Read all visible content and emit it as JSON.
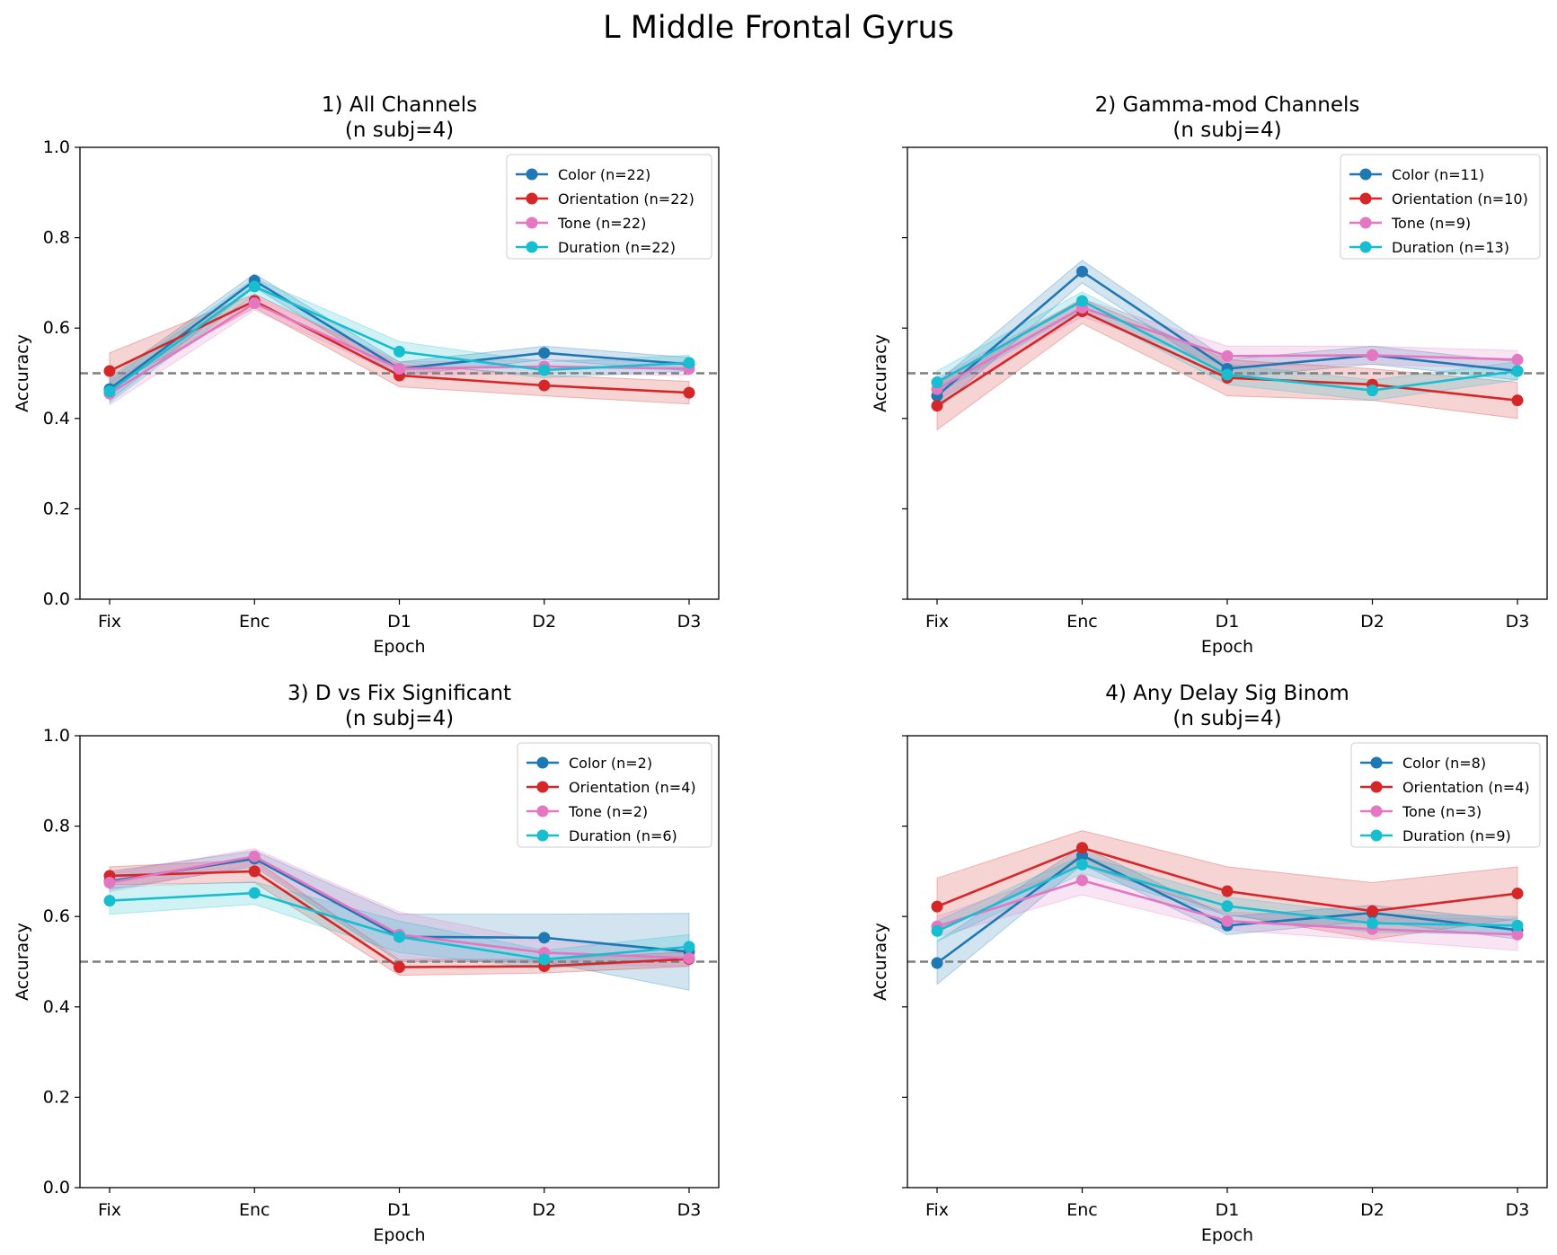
{
  "figure": {
    "title": "L Middle Frontal Gyrus"
  },
  "colors": {
    "Color": "#1f77b4",
    "Orientation": "#d62728",
    "Tone": "#e377c2",
    "Duration": "#17becf",
    "chance_line": "#7f7f7f"
  },
  "chart_data": [
    {
      "type": "line",
      "title": "1) All Channels",
      "subtitle": "(n subj=4)",
      "xlabel": "Epoch",
      "ylabel": "Accuracy",
      "categories": [
        "Fix",
        "Enc",
        "D1",
        "D2",
        "D3"
      ],
      "ylim": [
        0,
        1
      ],
      "yticks": [
        "0.0",
        "0.2",
        "0.4",
        "0.6",
        "0.8",
        "1.0"
      ],
      "show_ytick_labels": true,
      "chance_level": 0.5,
      "legend": "top-right",
      "series": [
        {
          "name": "Color (n=22)",
          "key": "Color",
          "values": [
            0.465,
            0.705,
            0.51,
            0.545,
            0.52
          ],
          "lower": [
            0.44,
            0.69,
            0.495,
            0.53,
            0.505
          ],
          "upper": [
            0.49,
            0.72,
            0.525,
            0.56,
            0.535
          ]
        },
        {
          "name": "Orientation (n=22)",
          "key": "Orientation",
          "values": [
            0.505,
            0.66,
            0.495,
            0.473,
            0.457
          ],
          "lower": [
            0.47,
            0.645,
            0.47,
            0.45,
            0.432
          ],
          "upper": [
            0.545,
            0.675,
            0.52,
            0.496,
            0.482
          ]
        },
        {
          "name": "Tone (n=22)",
          "key": "Tone",
          "values": [
            0.455,
            0.655,
            0.51,
            0.515,
            0.51
          ],
          "lower": [
            0.43,
            0.64,
            0.495,
            0.5,
            0.495
          ],
          "upper": [
            0.48,
            0.67,
            0.525,
            0.53,
            0.525
          ]
        },
        {
          "name": "Duration (n=22)",
          "key": "Duration",
          "values": [
            0.46,
            0.692,
            0.548,
            0.507,
            0.523
          ],
          "lower": [
            0.435,
            0.675,
            0.525,
            0.49,
            0.505
          ],
          "upper": [
            0.485,
            0.71,
            0.57,
            0.525,
            0.54
          ]
        }
      ]
    },
    {
      "type": "line",
      "title": "2) Gamma-mod Channels",
      "subtitle": "(n subj=4)",
      "xlabel": "Epoch",
      "ylabel": "Accuracy",
      "categories": [
        "Fix",
        "Enc",
        "D1",
        "D2",
        "D3"
      ],
      "ylim": [
        0,
        1
      ],
      "yticks": [
        "0.0",
        "0.2",
        "0.4",
        "0.6",
        "0.8",
        "1.0"
      ],
      "show_ytick_labels": false,
      "chance_level": 0.5,
      "legend": "top-right",
      "series": [
        {
          "name": "Color (n=11)",
          "key": "Color",
          "values": [
            0.45,
            0.725,
            0.51,
            0.54,
            0.505
          ],
          "lower": [
            0.42,
            0.7,
            0.49,
            0.52,
            0.485
          ],
          "upper": [
            0.48,
            0.75,
            0.53,
            0.56,
            0.525
          ]
        },
        {
          "name": "Orientation (n=10)",
          "key": "Orientation",
          "values": [
            0.428,
            0.637,
            0.49,
            0.475,
            0.44
          ],
          "lower": [
            0.375,
            0.61,
            0.45,
            0.44,
            0.4
          ],
          "upper": [
            0.48,
            0.665,
            0.53,
            0.51,
            0.48
          ]
        },
        {
          "name": "Tone (n=9)",
          "key": "Tone",
          "values": [
            0.465,
            0.645,
            0.538,
            0.54,
            0.53
          ],
          "lower": [
            0.44,
            0.625,
            0.515,
            0.52,
            0.51
          ],
          "upper": [
            0.49,
            0.665,
            0.56,
            0.56,
            0.55
          ]
        },
        {
          "name": "Duration (n=13)",
          "key": "Duration",
          "values": [
            0.48,
            0.66,
            0.497,
            0.462,
            0.505
          ],
          "lower": [
            0.455,
            0.64,
            0.475,
            0.44,
            0.485
          ],
          "upper": [
            0.505,
            0.68,
            0.52,
            0.485,
            0.525
          ]
        }
      ]
    },
    {
      "type": "line",
      "title": "3) D vs Fix Significant",
      "subtitle": "(n subj=4)",
      "xlabel": "Epoch",
      "ylabel": "Accuracy",
      "categories": [
        "Fix",
        "Enc",
        "D1",
        "D2",
        "D3"
      ],
      "ylim": [
        0,
        1
      ],
      "yticks": [
        "0.0",
        "0.2",
        "0.4",
        "0.6",
        "0.8",
        "1.0"
      ],
      "show_ytick_labels": true,
      "chance_level": 0.5,
      "legend": "top-right",
      "series": [
        {
          "name": "Color (n=2)",
          "key": "Color",
          "values": [
            0.678,
            0.728,
            0.555,
            0.553,
            0.522
          ],
          "lower": [
            0.66,
            0.71,
            0.5,
            0.5,
            0.437
          ],
          "upper": [
            0.7,
            0.745,
            0.605,
            0.605,
            0.607
          ]
        },
        {
          "name": "Orientation (n=4)",
          "key": "Orientation",
          "values": [
            0.69,
            0.7,
            0.488,
            0.49,
            0.506
          ],
          "lower": [
            0.67,
            0.675,
            0.47,
            0.475,
            0.49
          ],
          "upper": [
            0.71,
            0.725,
            0.505,
            0.505,
            0.522
          ]
        },
        {
          "name": "Tone (n=2)",
          "key": "Tone",
          "values": [
            0.675,
            0.733,
            0.56,
            0.52,
            0.508
          ],
          "lower": [
            0.655,
            0.715,
            0.51,
            0.495,
            0.49
          ],
          "upper": [
            0.695,
            0.75,
            0.61,
            0.545,
            0.525
          ]
        },
        {
          "name": "Duration (n=6)",
          "key": "Duration",
          "values": [
            0.635,
            0.652,
            0.555,
            0.505,
            0.533
          ],
          "lower": [
            0.605,
            0.627,
            0.52,
            0.485,
            0.505
          ],
          "upper": [
            0.665,
            0.677,
            0.59,
            0.525,
            0.56
          ]
        }
      ]
    },
    {
      "type": "line",
      "title": "4) Any Delay Sig Binom",
      "subtitle": "(n subj=4)",
      "xlabel": "Epoch",
      "ylabel": "Accuracy",
      "categories": [
        "Fix",
        "Enc",
        "D1",
        "D2",
        "D3"
      ],
      "ylim": [
        0,
        1
      ],
      "yticks": [
        "0.0",
        "0.2",
        "0.4",
        "0.6",
        "0.8",
        "1.0"
      ],
      "show_ytick_labels": false,
      "chance_level": 0.5,
      "legend": "top-right",
      "series": [
        {
          "name": "Color (n=8)",
          "key": "Color",
          "values": [
            0.497,
            0.735,
            0.58,
            0.608,
            0.57
          ],
          "lower": [
            0.45,
            0.715,
            0.56,
            0.59,
            0.55
          ],
          "upper": [
            0.545,
            0.755,
            0.6,
            0.625,
            0.59
          ]
        },
        {
          "name": "Orientation (n=4)",
          "key": "Orientation",
          "values": [
            0.622,
            0.752,
            0.656,
            0.612,
            0.651
          ],
          "lower": [
            0.565,
            0.715,
            0.605,
            0.55,
            0.595
          ],
          "upper": [
            0.685,
            0.79,
            0.71,
            0.675,
            0.71
          ]
        },
        {
          "name": "Tone (n=3)",
          "key": "Tone",
          "values": [
            0.578,
            0.68,
            0.59,
            0.572,
            0.56
          ],
          "lower": [
            0.555,
            0.648,
            0.57,
            0.548,
            0.525
          ],
          "upper": [
            0.6,
            0.712,
            0.61,
            0.597,
            0.595
          ]
        },
        {
          "name": "Duration (n=9)",
          "key": "Duration",
          "values": [
            0.568,
            0.715,
            0.623,
            0.585,
            0.58
          ],
          "lower": [
            0.545,
            0.695,
            0.603,
            0.565,
            0.56
          ],
          "upper": [
            0.59,
            0.735,
            0.643,
            0.605,
            0.6
          ]
        }
      ]
    }
  ]
}
